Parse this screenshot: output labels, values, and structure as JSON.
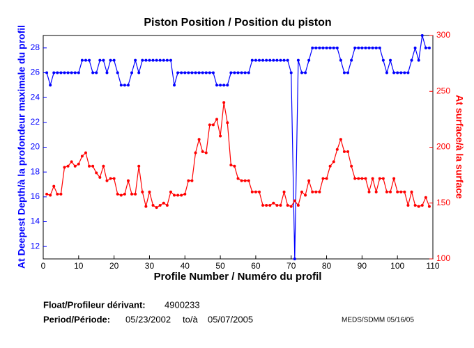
{
  "chart_data": {
    "type": "line",
    "title": "Piston Position / Position du piston",
    "x_label": "Profile Number / Numéro du profil",
    "y_label": "At Deepest Depth/à la profondeur maximale du profil",
    "y2_label": "At surface/à la surface",
    "x": [
      1,
      2,
      3,
      4,
      5,
      6,
      7,
      8,
      9,
      10,
      11,
      12,
      13,
      14,
      15,
      16,
      17,
      18,
      19,
      20,
      21,
      22,
      23,
      24,
      25,
      26,
      27,
      28,
      29,
      30,
      31,
      32,
      33,
      34,
      35,
      36,
      37,
      38,
      39,
      40,
      41,
      42,
      43,
      44,
      45,
      46,
      47,
      48,
      49,
      50,
      51,
      52,
      53,
      54,
      55,
      56,
      57,
      58,
      59,
      60,
      61,
      62,
      63,
      64,
      65,
      66,
      67,
      68,
      69,
      70,
      71,
      72,
      73,
      74,
      75,
      76,
      77,
      78,
      79,
      80,
      81,
      82,
      83,
      84,
      85,
      86,
      87,
      88,
      89,
      90,
      91,
      92,
      93,
      94,
      95,
      96,
      97,
      98,
      99,
      100,
      101,
      102,
      103,
      104,
      105,
      106,
      107,
      108,
      109
    ],
    "series": [
      {
        "color": "#0000ff",
        "axis": "y",
        "values": [
          26,
          25,
          26,
          26,
          26,
          26,
          26,
          26,
          26,
          26,
          27,
          27,
          27,
          26,
          26,
          27,
          27,
          26,
          27,
          27,
          26,
          25,
          25,
          25,
          26,
          27,
          26,
          27,
          27,
          27,
          27,
          27,
          27,
          27,
          27,
          27,
          25,
          26,
          26,
          26,
          26,
          26,
          26,
          26,
          26,
          26,
          26,
          26,
          25,
          25,
          25,
          25,
          26,
          26,
          26,
          26,
          26,
          26,
          27,
          27,
          27,
          27,
          27,
          27,
          27,
          27,
          27,
          27,
          27,
          26,
          11,
          27,
          26,
          26,
          27,
          28,
          28,
          28,
          28,
          28,
          28,
          28,
          28,
          27,
          26,
          26,
          27,
          28,
          28,
          28,
          28,
          28,
          28,
          28,
          28,
          27,
          26,
          27,
          26,
          26,
          26,
          26,
          26,
          27,
          28,
          27,
          29,
          28,
          28
        ]
      },
      {
        "color": "#ff0000",
        "axis": "y2",
        "values": [
          158,
          157,
          165,
          158,
          158,
          182,
          183,
          187,
          183,
          185,
          192,
          195,
          183,
          183,
          177,
          173,
          183,
          170,
          172,
          172,
          158,
          157,
          158,
          170,
          158,
          158,
          183,
          160,
          147,
          160,
          148,
          146,
          148,
          150,
          148,
          160,
          157,
          157,
          157,
          158,
          170,
          170,
          195,
          207,
          196,
          195,
          220,
          220,
          225,
          210,
          240,
          222,
          184,
          183,
          172,
          170,
          170,
          170,
          160,
          160,
          160,
          148,
          148,
          148,
          150,
          148,
          148,
          160,
          148,
          147,
          152,
          148,
          160,
          157,
          170,
          160,
          160,
          160,
          172,
          172,
          183,
          187,
          198,
          207,
          196,
          196,
          183,
          172,
          172,
          172,
          172,
          160,
          172,
          160,
          172,
          172,
          160,
          160,
          172,
          160,
          160,
          160,
          148,
          160,
          148,
          147,
          148,
          155,
          147
        ]
      }
    ],
    "xlim": [
      0,
      110
    ],
    "xticks": [
      0,
      10,
      20,
      30,
      40,
      50,
      60,
      70,
      80,
      90,
      100,
      110
    ],
    "ylim": [
      11,
      29
    ],
    "yticks": [
      12,
      14,
      16,
      18,
      20,
      22,
      24,
      26,
      28
    ],
    "y2lim": [
      100,
      300
    ],
    "y2ticks": [
      100,
      150,
      200,
      250,
      300
    ],
    "grid": false
  },
  "footer": {
    "float_label": "Float/Profileur dérivant:",
    "float_id": "4900233",
    "period_label": "Period/Période:",
    "start": "05/23/2002",
    "to": "to/à",
    "end": "05/07/2005",
    "credit": "MEDS/SDMM  05/16/05"
  }
}
